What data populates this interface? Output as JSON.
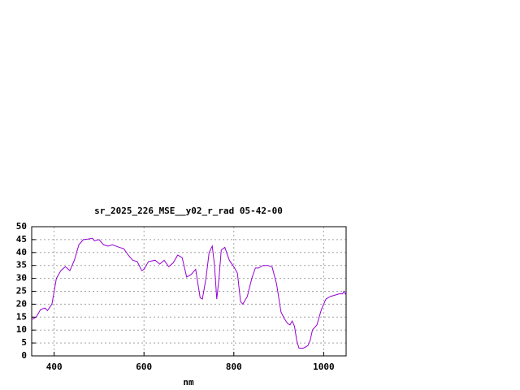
{
  "chart_data": {
    "type": "line",
    "title": "sr_2025_226_MSE__y02_r_rad 05-42-00",
    "x_label": "nm",
    "x": [
      350,
      360,
      370,
      380,
      385,
      395,
      405,
      415,
      425,
      435,
      445,
      455,
      465,
      475,
      485,
      490,
      500,
      510,
      520,
      530,
      545,
      555,
      565,
      575,
      585,
      595,
      600,
      610,
      625,
      635,
      645,
      655,
      665,
      675,
      685,
      695,
      705,
      715,
      720,
      725,
      730,
      738,
      745,
      752,
      757,
      762,
      767,
      772,
      780,
      790,
      800,
      808,
      815,
      820,
      830,
      840,
      848,
      855,
      865,
      875,
      885,
      895,
      905,
      912,
      920,
      925,
      930,
      935,
      940,
      945,
      955,
      965,
      970,
      975,
      985,
      995,
      1005,
      1015,
      1025,
      1035,
      1042,
      1045,
      1050
    ],
    "series": [
      {
        "color": "#9400d3",
        "values": [
          14,
          15,
          18,
          18.5,
          17.5,
          20,
          30,
          33,
          34.5,
          33,
          37,
          43,
          45,
          45.2,
          45.5,
          44.5,
          45,
          43,
          42.5,
          43,
          42,
          41.5,
          39,
          37,
          36.5,
          33,
          33.5,
          36.5,
          37,
          35.5,
          37,
          34.5,
          36,
          39,
          38,
          30.5,
          31.5,
          33.5,
          28,
          22.5,
          22,
          30,
          40,
          42.5,
          35,
          22,
          30,
          41,
          42,
          37,
          34.5,
          32,
          21,
          20,
          23,
          30,
          34,
          34,
          35,
          35,
          34.5,
          28,
          17,
          14.5,
          12.5,
          12,
          13.5,
          11.5,
          6,
          3,
          3,
          4,
          6,
          10,
          12,
          18,
          22,
          23,
          23.5,
          24,
          24,
          25,
          23.5
        ]
      }
    ],
    "xlim": [
      350,
      1050
    ],
    "xticks": [
      400,
      600,
      800,
      1000
    ],
    "ylim": [
      0,
      50
    ],
    "yticks": [
      0,
      5,
      10,
      15,
      20,
      25,
      30,
      35,
      40,
      45,
      50
    ],
    "grid": true
  }
}
